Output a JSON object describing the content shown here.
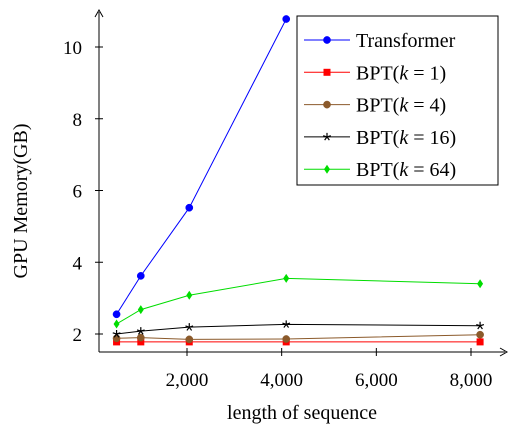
{
  "chart_data": {
    "type": "line",
    "xlabel": "length of sequence",
    "ylabel": "GPU Memory(GB)",
    "xlim": [
      0,
      9000
    ],
    "ylim": [
      1.5,
      11
    ],
    "xticks": [
      2000,
      4000,
      6000,
      8000
    ],
    "xtick_labels": [
      "2,000",
      "4,000",
      "6,000",
      "8,000"
    ],
    "yticks": [
      2,
      4,
      6,
      8,
      10
    ],
    "ytick_labels": [
      "2",
      "4",
      "6",
      "8",
      "10"
    ],
    "grid": false,
    "legend_position": "top-right",
    "x": [
      512,
      1024,
      2048,
      4096,
      8192
    ],
    "series": [
      {
        "name": "Transformer",
        "legend_prefix": "Transformer",
        "legend_k": "",
        "color": "#0000ff",
        "marker": "circle",
        "values": [
          2.55,
          3.62,
          5.52,
          10.78,
          null
        ]
      },
      {
        "name": "BPT(k = 1)",
        "legend_prefix": "BPT(",
        "legend_k": "1",
        "color": "#ff0000",
        "marker": "square",
        "values": [
          1.78,
          1.78,
          1.78,
          1.78,
          1.78
        ]
      },
      {
        "name": "BPT(k = 4)",
        "legend_prefix": "BPT(",
        "legend_k": "4",
        "color": "#8b5a2b",
        "marker": "circle",
        "values": [
          1.88,
          1.9,
          1.85,
          1.86,
          1.98
        ]
      },
      {
        "name": "BPT(k = 16)",
        "legend_prefix": "BPT(",
        "legend_k": "16",
        "color": "#000000",
        "marker": "star",
        "values": [
          2.0,
          2.08,
          2.19,
          2.27,
          2.23
        ]
      },
      {
        "name": "BPT(k = 64)",
        "legend_prefix": "BPT(",
        "legend_k": "64",
        "color": "#00dd00",
        "marker": "diamond",
        "values": [
          2.28,
          2.68,
          3.08,
          3.55,
          3.4
        ]
      }
    ]
  }
}
